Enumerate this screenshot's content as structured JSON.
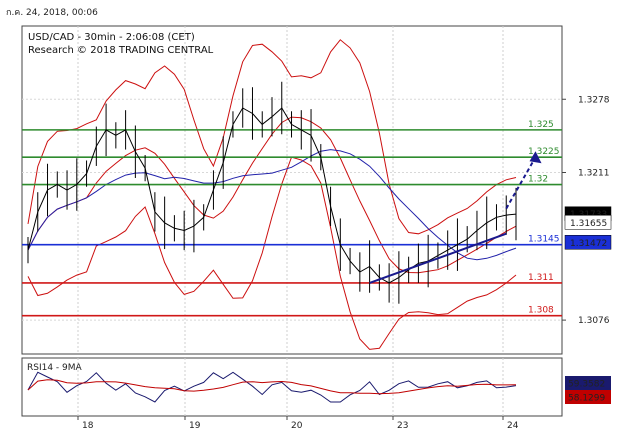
{
  "window": {
    "timestamp": "ก.ค. 24, 2018, 00:06"
  },
  "chart_data": {
    "type": "line",
    "title": "USD/CAD - 30min - 2:06:08 (CET)",
    "subtitle": "Research © 2018 TRADING CENTRAL",
    "x_tick_labels": [
      "18",
      "19",
      "20",
      "23",
      "24"
    ],
    "y_tick_labels": [
      "1.3278",
      "1.3211",
      "1.3076"
    ],
    "ylim": [
      1.3045,
      1.3345
    ],
    "grid": true,
    "price_series": {
      "name": "USD/CAD",
      "x": [
        0,
        2,
        4,
        6,
        8,
        10,
        12,
        14,
        16,
        18,
        20,
        22,
        24,
        26,
        28,
        30,
        32,
        34,
        36,
        38,
        40,
        42,
        44,
        46,
        48,
        50,
        52,
        54,
        56,
        58,
        60,
        62,
        64,
        66,
        68,
        70,
        72,
        74,
        76,
        78,
        80,
        82,
        84,
        86,
        88,
        90,
        92,
        94,
        96,
        98,
        100
      ],
      "values": [
        1.314,
        1.3175,
        1.3195,
        1.32,
        1.3195,
        1.32,
        1.321,
        1.3235,
        1.325,
        1.3245,
        1.325,
        1.323,
        1.3215,
        1.3175,
        1.3165,
        1.316,
        1.3158,
        1.3162,
        1.317,
        1.3195,
        1.322,
        1.3255,
        1.327,
        1.3265,
        1.3255,
        1.3262,
        1.327,
        1.3255,
        1.325,
        1.3245,
        1.3225,
        1.318,
        1.3145,
        1.313,
        1.312,
        1.3125,
        1.3115,
        1.311,
        1.3115,
        1.3122,
        1.3128,
        1.313,
        1.3135,
        1.314,
        1.3145,
        1.315,
        1.3158,
        1.3165,
        1.317,
        1.3172,
        1.3173
      ]
    },
    "levels": [
      {
        "label": "1.325",
        "value": 1.325,
        "color": "#2e8b2e"
      },
      {
        "label": "1.3225",
        "value": 1.3225,
        "color": "#2e8b2e"
      },
      {
        "label": "1.32",
        "value": 1.32,
        "color": "#2e8b2e"
      },
      {
        "label": "1.3145",
        "value": 1.3145,
        "color": "#1a2fd6"
      },
      {
        "label": "1.311",
        "value": 1.311,
        "color": "#d01818"
      },
      {
        "label": "1.308",
        "value": 1.308,
        "color": "#d01818"
      }
    ],
    "price_tags": [
      {
        "label": "1.31733",
        "value": 1.31733,
        "bg": "#000000",
        "fg": "#ffffff"
      },
      {
        "label": "1.31655",
        "value": 1.31655,
        "bg": "#ffffff",
        "fg": "#c00000"
      },
      {
        "label": "1.31472",
        "value": 1.31472,
        "bg": "#1a2fd6",
        "fg": "#ffffff"
      }
    ],
    "rsi": {
      "title": "RSI14 - 9MA",
      "tags": [
        {
          "label": "59.3582",
          "bg": "#1a1a6e",
          "fg": "#ffffff"
        },
        {
          "label": "58.1299",
          "bg": "#c00000",
          "fg": "#ffffff"
        }
      ]
    },
    "colors": {
      "bands": "#cc1010",
      "ma": "#2222aa",
      "price": "#000000",
      "arrow": "#1a1a8e"
    }
  }
}
